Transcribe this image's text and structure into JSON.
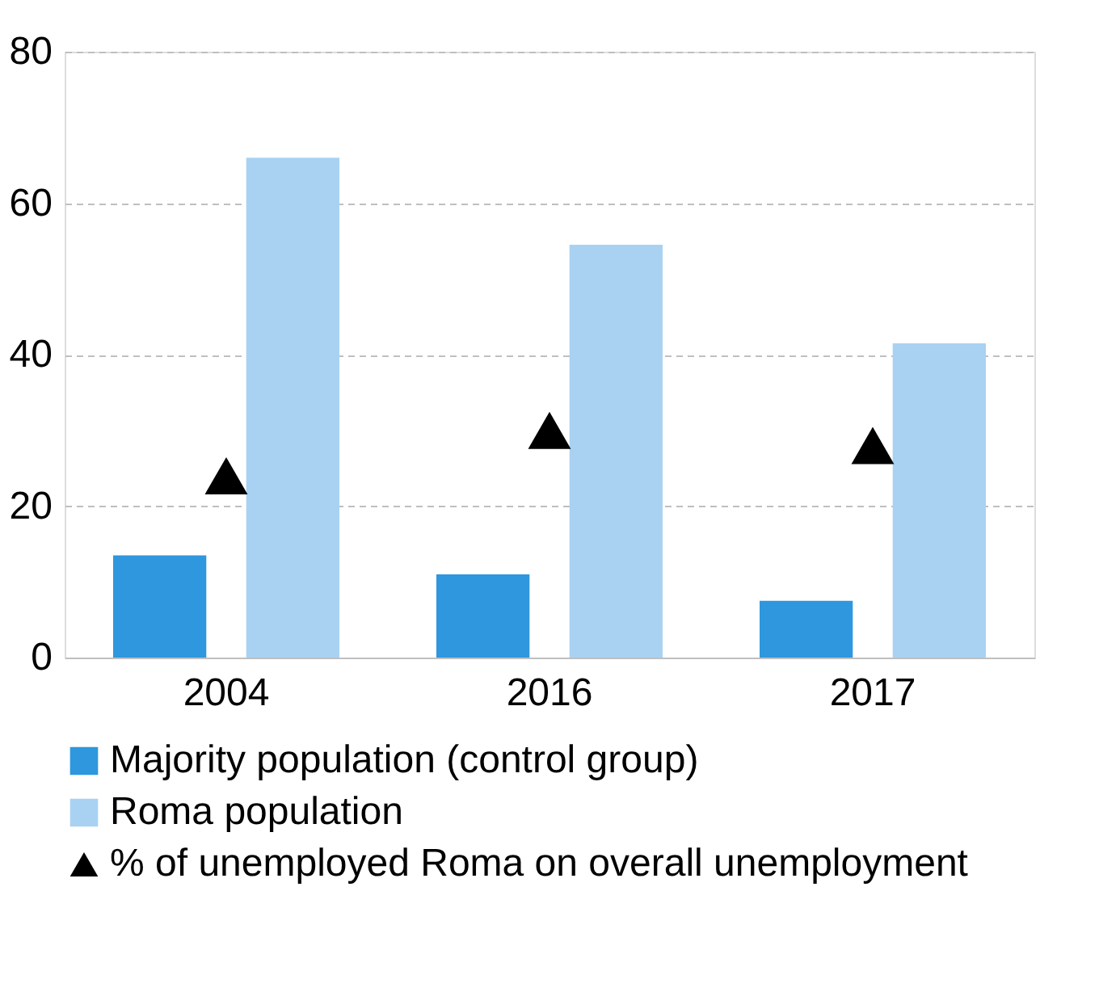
{
  "chart_data": {
    "type": "bar",
    "categories": [
      "2004",
      "2016",
      "2017"
    ],
    "series": [
      {
        "name": "Majority population (control group)",
        "color": "#2e97de",
        "values": [
          13.5,
          11,
          7.5
        ]
      },
      {
        "name": "Roma population",
        "color": "#a9d2f2",
        "values": [
          66,
          54.5,
          41.5
        ]
      },
      {
        "name": "% of unemployed Roma on overall unemployment",
        "type": "scatter",
        "color": "#000000",
        "values": [
          24,
          30,
          28
        ]
      }
    ],
    "ylim": [
      0,
      80
    ],
    "yticks": [
      0,
      20,
      40,
      60,
      80
    ],
    "grid": "y",
    "legend": "bottom",
    "marker": "triangle"
  }
}
